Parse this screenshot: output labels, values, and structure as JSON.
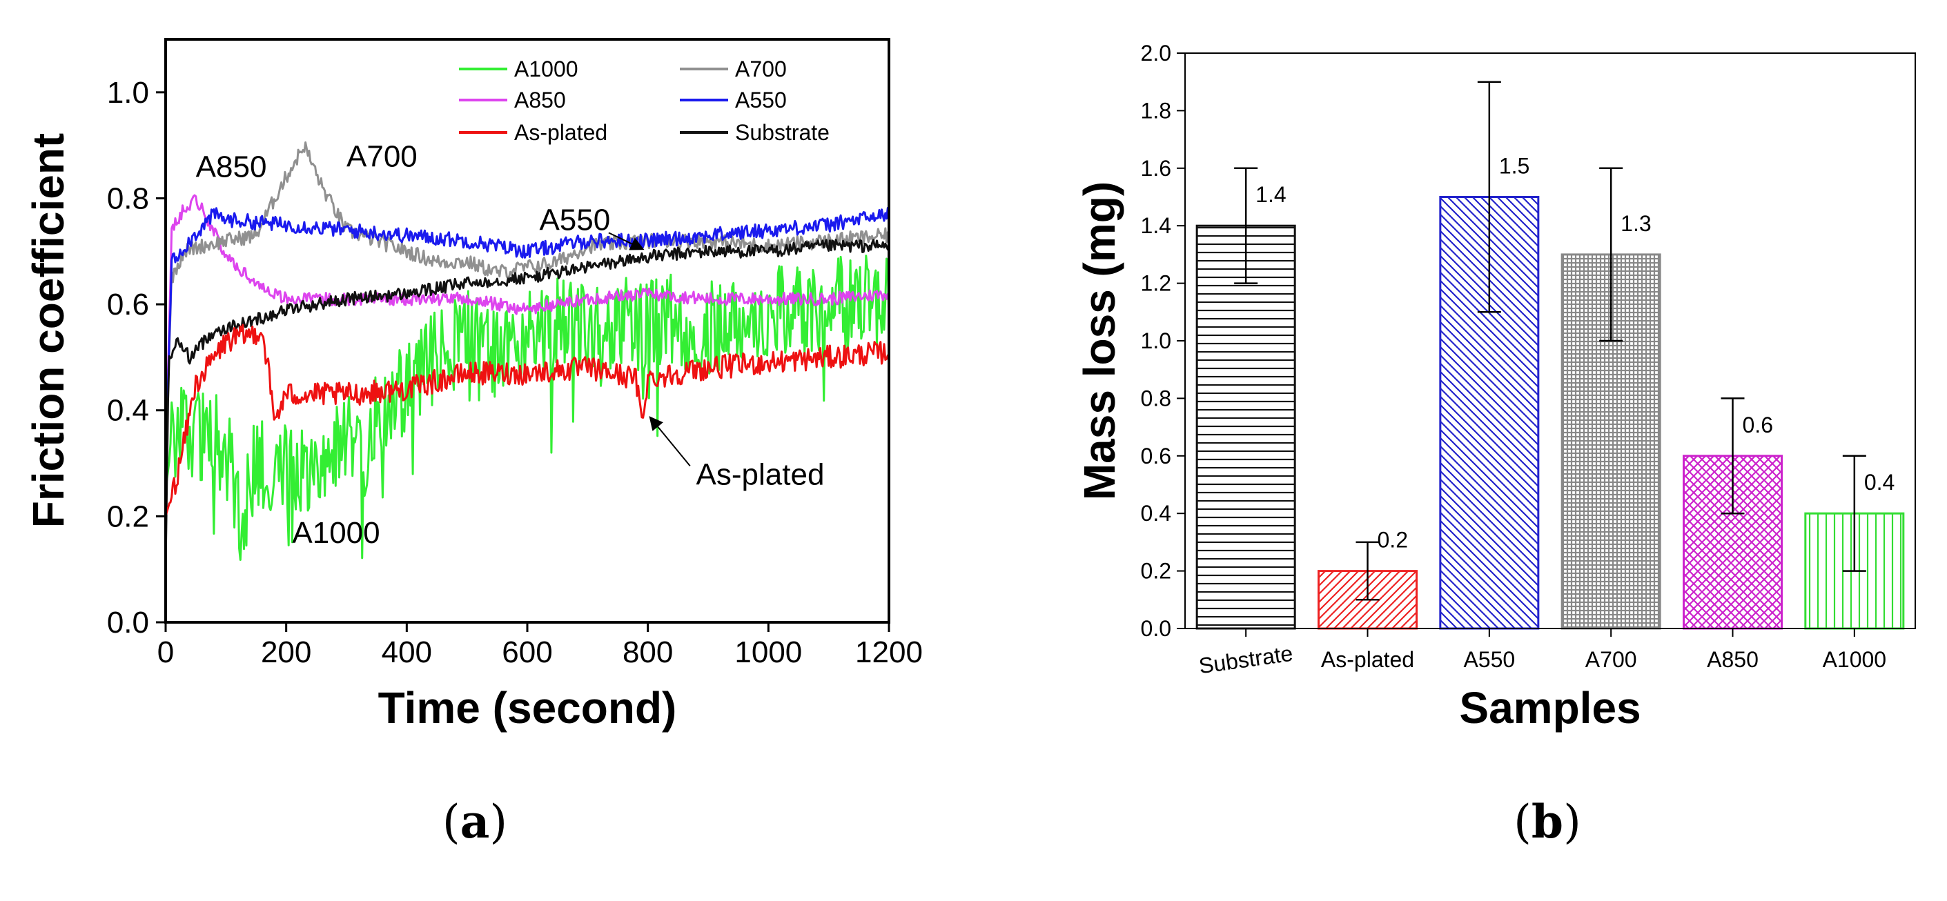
{
  "chart_data": [
    {
      "panel": "a",
      "type": "line",
      "title": "",
      "xlabel": "Time (second)",
      "ylabel": "Friction coefficient",
      "xlim": [
        0,
        1200
      ],
      "ylim": [
        0,
        1.1
      ],
      "xticks": [
        "0",
        "200",
        "400",
        "600",
        "800",
        "1000",
        "1200"
      ],
      "yticks": [
        "0.0",
        "0.2",
        "0.4",
        "0.6",
        "0.8",
        "1.0"
      ],
      "legend_position": "top-right",
      "legend": [
        "A1000",
        "A700",
        "A850",
        "A550",
        "As-plated",
        "Substrate"
      ],
      "series": [
        {
          "name": "A1000",
          "color": "#33ee33",
          "x": [
            0,
            10,
            25,
            50,
            100,
            125,
            150,
            200,
            250,
            300,
            330,
            350,
            400,
            450,
            500,
            550,
            600,
            650,
            700,
            750,
            800,
            850,
            900,
            950,
            1000,
            1050,
            1100,
            1150,
            1200
          ],
          "y": [
            0.25,
            0.34,
            0.38,
            0.36,
            0.33,
            0.19,
            0.3,
            0.3,
            0.3,
            0.36,
            0.27,
            0.39,
            0.44,
            0.5,
            0.55,
            0.5,
            0.55,
            0.56,
            0.55,
            0.57,
            0.56,
            0.57,
            0.55,
            0.58,
            0.58,
            0.59,
            0.6,
            0.6,
            0.62
          ]
        },
        {
          "name": "A700",
          "color": "#909090",
          "x": [
            0,
            10,
            30,
            60,
            100,
            150,
            190,
            230,
            260,
            300,
            350,
            400,
            450,
            500,
            550,
            600,
            650,
            700,
            800,
            900,
            1000,
            1100,
            1200
          ],
          "y": [
            0.3,
            0.65,
            0.7,
            0.71,
            0.72,
            0.73,
            0.82,
            0.9,
            0.82,
            0.74,
            0.72,
            0.7,
            0.68,
            0.68,
            0.66,
            0.67,
            0.68,
            0.71,
            0.72,
            0.72,
            0.71,
            0.72,
            0.73
          ]
        },
        {
          "name": "A850",
          "color": "#dd44ee",
          "x": [
            0,
            10,
            30,
            50,
            70,
            100,
            150,
            200,
            300,
            400,
            500,
            600,
            700,
            800,
            900,
            1000,
            1100,
            1200
          ],
          "y": [
            0.3,
            0.74,
            0.78,
            0.8,
            0.76,
            0.69,
            0.64,
            0.61,
            0.61,
            0.61,
            0.61,
            0.59,
            0.61,
            0.62,
            0.61,
            0.61,
            0.61,
            0.62
          ]
        },
        {
          "name": "A550",
          "color": "#1a1aee",
          "x": [
            0,
            10,
            40,
            80,
            100,
            200,
            300,
            400,
            500,
            600,
            700,
            800,
            900,
            1000,
            1100,
            1150,
            1200
          ],
          "y": [
            0.3,
            0.68,
            0.72,
            0.77,
            0.76,
            0.75,
            0.74,
            0.73,
            0.72,
            0.7,
            0.72,
            0.72,
            0.73,
            0.74,
            0.75,
            0.76,
            0.77
          ]
        },
        {
          "name": "As-plated",
          "color": "#ee1111",
          "x": [
            0,
            20,
            50,
            100,
            160,
            170,
            180,
            200,
            300,
            400,
            500,
            600,
            700,
            780,
            790,
            800,
            900,
            1000,
            1100,
            1200
          ],
          "y": [
            0.2,
            0.28,
            0.45,
            0.53,
            0.55,
            0.48,
            0.38,
            0.43,
            0.43,
            0.44,
            0.47,
            0.47,
            0.48,
            0.46,
            0.38,
            0.46,
            0.48,
            0.49,
            0.5,
            0.51
          ]
        },
        {
          "name": "Substrate",
          "color": "#111111",
          "x": [
            0,
            5,
            20,
            40,
            80,
            120,
            200,
            300,
            400,
            500,
            600,
            700,
            800,
            900,
            1000,
            1100,
            1200
          ],
          "y": [
            0.1,
            0.5,
            0.53,
            0.5,
            0.55,
            0.56,
            0.59,
            0.61,
            0.62,
            0.64,
            0.65,
            0.67,
            0.69,
            0.7,
            0.7,
            0.71,
            0.71
          ]
        }
      ],
      "annotations": [
        {
          "text": "A850",
          "x": 50,
          "y": 0.84
        },
        {
          "text": "A700",
          "x": 300,
          "y": 0.86
        },
        {
          "text": "A550",
          "x": 620,
          "y": 0.74
        },
        {
          "text": "As-plated",
          "x": 880,
          "y": 0.26
        },
        {
          "text": "A1000",
          "x": 210,
          "y": 0.15
        }
      ]
    },
    {
      "panel": "b",
      "type": "bar",
      "title": "",
      "xlabel": "Samples",
      "ylabel": "Mass loss (mg)",
      "ylim": [
        0,
        2.0
      ],
      "yticks": [
        "0.0",
        "0.2",
        "0.4",
        "0.6",
        "0.8",
        "1.0",
        "1.2",
        "1.4",
        "1.6",
        "1.8",
        "2.0"
      ],
      "categories": [
        "Substrate",
        "As-plated",
        "A550",
        "A700",
        "A850",
        "A1000"
      ],
      "values": [
        1.4,
        0.2,
        1.5,
        1.3,
        0.6,
        0.4
      ],
      "value_labels": [
        "1.4",
        "0.2",
        "1.5",
        "1.3",
        "0.6",
        "0.4"
      ],
      "error": [
        0.2,
        0.1,
        0.4,
        0.3,
        0.2,
        0.2
      ],
      "colors": [
        "#111111",
        "#ee2222",
        "#2222cc",
        "#888888",
        "#cc22cc",
        "#33dd33"
      ],
      "patterns": [
        "horizontal",
        "diagonal-up",
        "diagonal-down",
        "grid",
        "crosshatch",
        "vertical"
      ]
    }
  ],
  "captions": {
    "a": "a",
    "b": "b"
  }
}
